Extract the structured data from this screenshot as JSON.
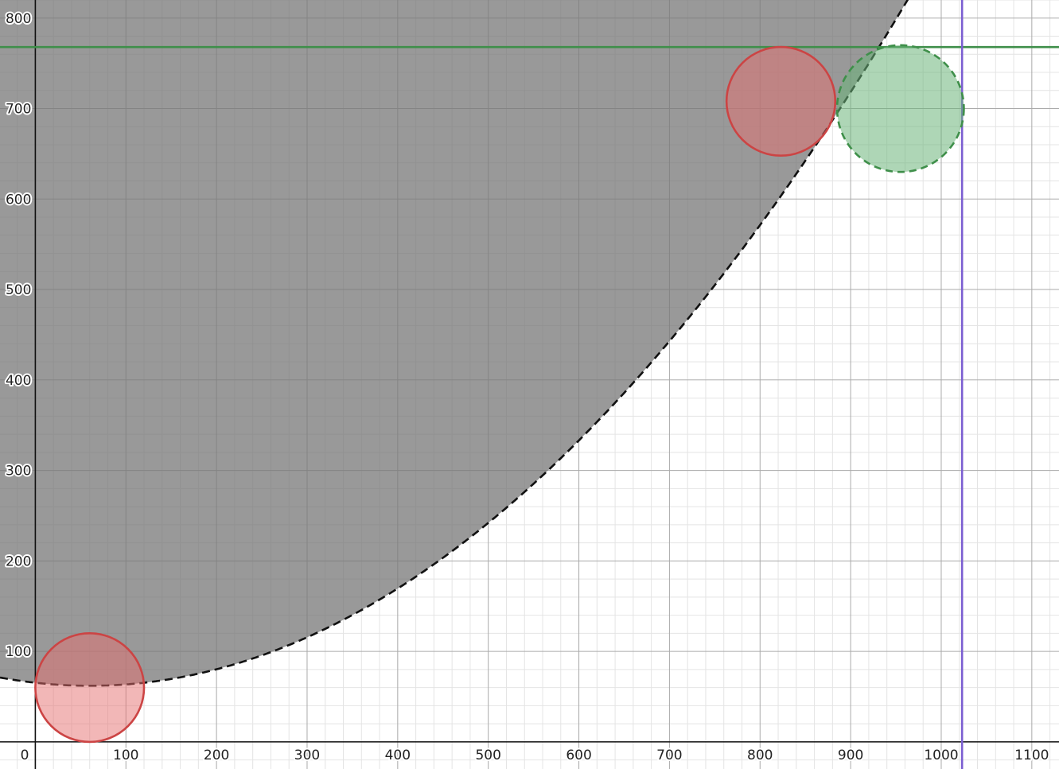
{
  "chart_data": {
    "type": "scatter",
    "xlim": [
      -39,
      1130
    ],
    "ylim": [
      -30,
      820
    ],
    "grid": true,
    "origin_label": "0",
    "x_ticks": [
      {
        "value": 100,
        "label": "100"
      },
      {
        "value": 200,
        "label": "200"
      },
      {
        "value": 300,
        "label": "300"
      },
      {
        "value": 400,
        "label": "400"
      },
      {
        "value": 500,
        "label": "500"
      },
      {
        "value": 600,
        "label": "600"
      },
      {
        "value": 700,
        "label": "700"
      },
      {
        "value": 800,
        "label": "800"
      },
      {
        "value": 900,
        "label": "900"
      },
      {
        "value": 1000,
        "label": "1000"
      },
      {
        "value": 1100,
        "label": "1100"
      }
    ],
    "y_ticks": [
      {
        "value": 100,
        "label": "100"
      },
      {
        "value": 200,
        "label": "200"
      },
      {
        "value": 300,
        "label": "300"
      },
      {
        "value": 400,
        "label": "400"
      },
      {
        "value": 500,
        "label": "500"
      },
      {
        "value": 600,
        "label": "600"
      },
      {
        "value": 700,
        "label": "700"
      },
      {
        "value": 800,
        "label": "800"
      }
    ],
    "parabola": {
      "vertex": [
        60,
        62
      ],
      "coefficient": 0.00093,
      "style": "dashed",
      "stroke_color": "#111111",
      "region": "above",
      "fill_color": "#777777",
      "fill_opacity": 0.75
    },
    "horizontal_line": {
      "y": 768,
      "color": "#3f8f4a"
    },
    "vertical_line": {
      "x": 1023,
      "color": "#7b5ed1"
    },
    "circles": [
      {
        "cx": 60,
        "cy": 60,
        "r": 60,
        "style": "solid",
        "stroke_color": "#cc4444",
        "fill_color": "#e66f6f",
        "fill_opacity": 0.5
      },
      {
        "cx": 823,
        "cy": 708,
        "r": 60,
        "style": "solid",
        "stroke_color": "#cc4444",
        "fill_color": "#e66f6f",
        "fill_opacity": 0.5
      },
      {
        "cx": 955,
        "cy": 700,
        "r": 70,
        "style": "dashed",
        "stroke_color": "#3f8f4a",
        "fill_color": "#6bb57a",
        "fill_opacity": 0.55
      }
    ]
  }
}
